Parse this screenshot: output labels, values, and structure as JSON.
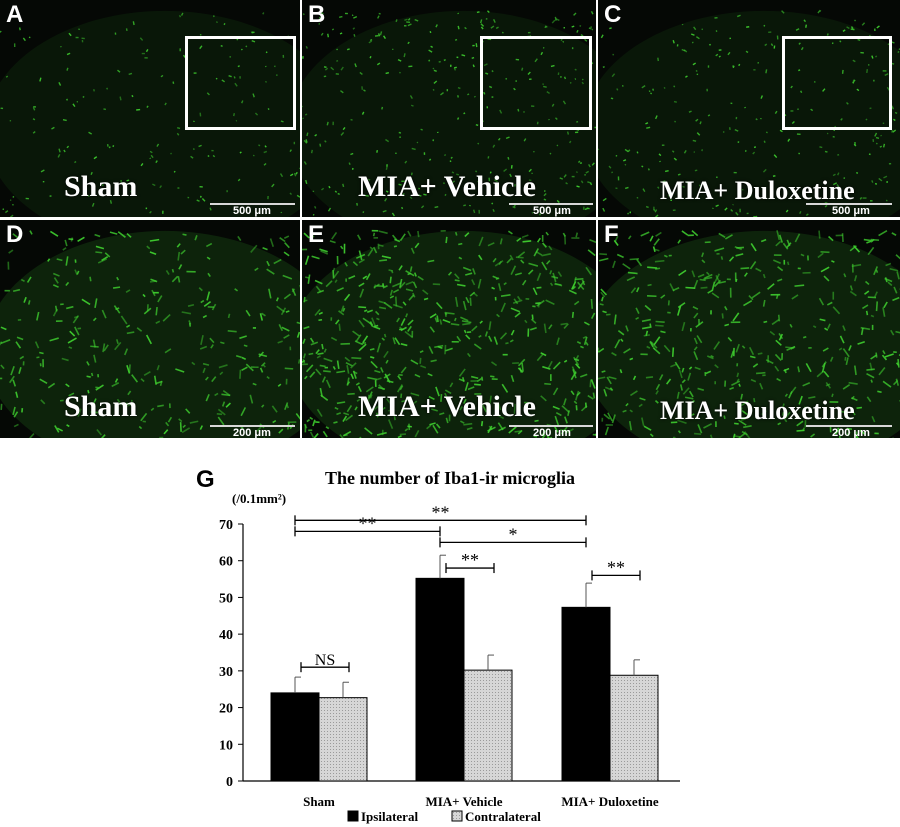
{
  "panels": [
    {
      "letter": "A",
      "caption": "Sham",
      "scale": "500 μm",
      "inset": true
    },
    {
      "letter": "B",
      "caption": "MIA+ Vehicle",
      "scale": "500 μm",
      "inset": true
    },
    {
      "letter": "C",
      "caption": "MIA+ Duloxetine",
      "scale": "500 μm",
      "inset": true
    },
    {
      "letter": "D",
      "caption": "Sham",
      "scale": "200 μm",
      "inset": false
    },
    {
      "letter": "E",
      "caption": "MIA+ Vehicle",
      "scale": "200 μm",
      "inset": false
    },
    {
      "letter": "F",
      "caption": "MIA+ Duloxetine",
      "scale": "200 μm",
      "inset": false
    }
  ],
  "chart_letter": "G",
  "colors": {
    "ipsilateral": "#000000",
    "contralateral": "#cfcfcf",
    "stain": "#3fcf2f"
  },
  "chart_data": {
    "type": "bar",
    "title": "The number of Iba1-ir microglia",
    "ylabel": "(/0.1mm²)",
    "ylim": [
      0,
      70
    ],
    "yticks": [
      0,
      10,
      20,
      30,
      40,
      50,
      60,
      70
    ],
    "categories": [
      "Sham",
      "MIA+ Vehicle",
      "MIA+ Duloxetine"
    ],
    "series": [
      {
        "name": "Ipsilateral",
        "values": [
          24,
          55.2,
          47.3
        ],
        "errors": [
          4.3,
          6.3,
          6.6
        ]
      },
      {
        "name": "Contralateral",
        "values": [
          22.7,
          30.2,
          28.8
        ],
        "errors": [
          4.2,
          4.1,
          4.2
        ]
      }
    ],
    "legend": "bottom",
    "annotations": [
      {
        "label": "**",
        "from": "Sham",
        "to": "MIA+ Duloxetine",
        "level": 71
      },
      {
        "label": "**",
        "from": "Sham",
        "to": "MIA+ Vehicle",
        "level": 68
      },
      {
        "label": "*",
        "from": "MIA+ Vehicle",
        "to": "MIA+ Duloxetine",
        "level": 65
      },
      {
        "label": "**",
        "within": "MIA+ Vehicle",
        "level": 58
      },
      {
        "label": "**",
        "within": "MIA+ Duloxetine",
        "level": 56
      },
      {
        "label": "NS",
        "within": "Sham",
        "level": 31
      }
    ]
  }
}
